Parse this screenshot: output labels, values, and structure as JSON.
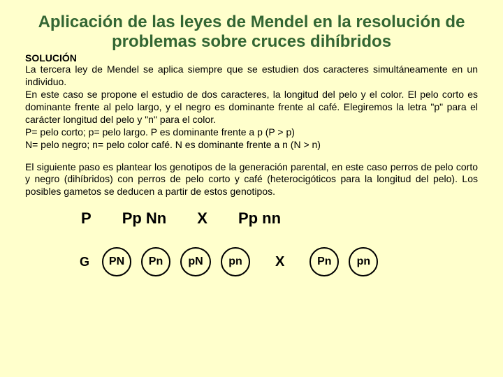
{
  "colors": {
    "background": "#ffffcc",
    "title_text": "#336633",
    "body_text": "#000000",
    "circle_border": "#000000"
  },
  "title": "Aplicación de las leyes de Mendel en la resolución de problemas sobre cruces dihíbridos",
  "subheading": "SOLUCIÓN",
  "paragraph1": "La tercera ley de Mendel se aplica siempre que se estudien dos caracteres simultáneamente en un individuo.",
  "paragraph2": "En este caso se propone el estudio de dos caracteres, la longitud del pelo y el color. El pelo corto es dominante frente al pelo largo, y el negro es dominante frente al café. Elegiremos la letra \"p\" para el carácter longitud del pelo y \"n\" para el color.",
  "paragraph3": "P= pelo corto; p= pelo largo. P es dominante frente a p (P > p)",
  "paragraph4": "N= pelo negro; n= pelo color café. N es dominante frente a n (N > n)",
  "paragraph5": "El siguiente paso es plantear los genotipos de la generación parental, en este caso perros de pelo corto y negro (dihíbridos) con perros de pelo corto y café (heterocigóticos para la longitud del pelo). Los posibles gametos se deducen a partir de estos genotipos.",
  "parents": {
    "label": "P",
    "genotype1": "Pp Nn",
    "cross": "X",
    "genotype2": "Pp nn"
  },
  "gametes": {
    "label": "G",
    "left": [
      "PN",
      "Pn",
      "pN",
      "pn"
    ],
    "cross": "X",
    "right": [
      "Pn",
      "pn"
    ]
  }
}
